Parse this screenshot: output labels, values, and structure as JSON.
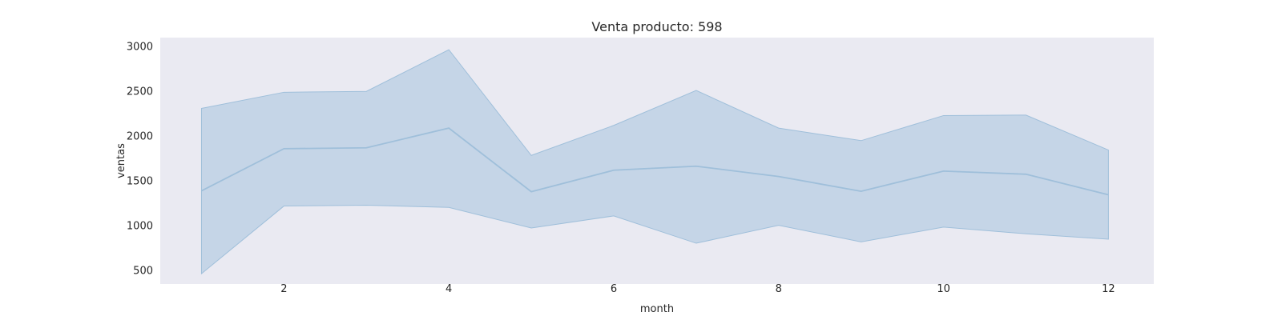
{
  "chart_data": {
    "type": "line",
    "title": "Venta producto: 598",
    "xlabel": "month",
    "ylabel": "ventas",
    "xlim": [
      0.5,
      12.55
    ],
    "ylim": [
      350,
      3100
    ],
    "xticks": [
      2,
      4,
      6,
      8,
      10,
      12
    ],
    "yticks": [
      500,
      1000,
      1500,
      2000,
      2500,
      3000
    ],
    "grid": false,
    "x": [
      1,
      2,
      3,
      4,
      5,
      6,
      7,
      8,
      9,
      10,
      11,
      12
    ],
    "series": [
      {
        "values": [
          1390,
          1860,
          1870,
          2090,
          1380,
          1620,
          1665,
          1550,
          1385,
          1610,
          1575,
          1345
        ],
        "ci_upper": [
          2310,
          2490,
          2500,
          2965,
          1785,
          2120,
          2510,
          2090,
          1950,
          2230,
          2235,
          1845
        ],
        "ci_lower": [
          465,
          1220,
          1230,
          1205,
          975,
          1110,
          805,
          1005,
          820,
          985,
          910,
          850
        ]
      }
    ],
    "colors": {
      "background": "#eaeaf2",
      "band": "#b0c9e0",
      "line": "#9fbfda"
    }
  }
}
